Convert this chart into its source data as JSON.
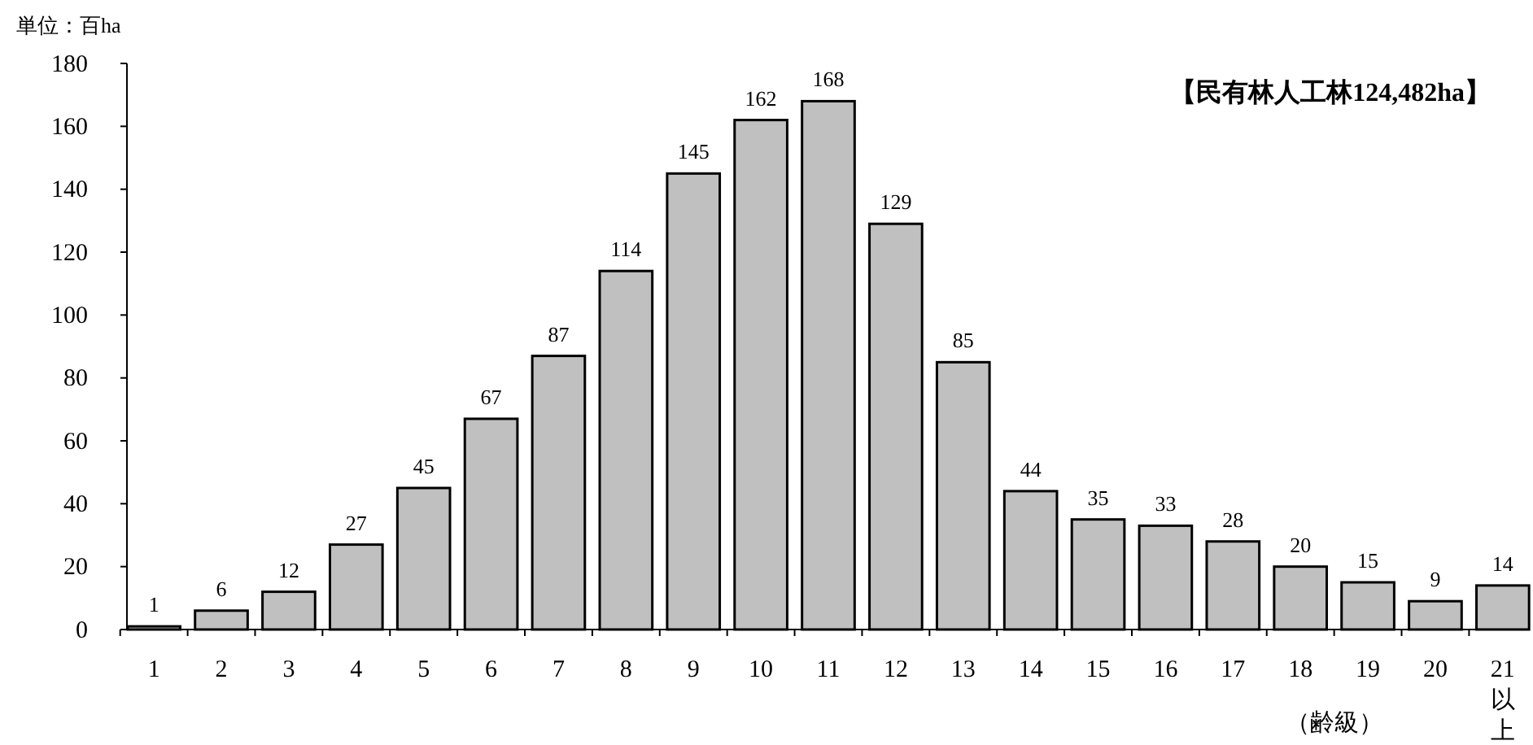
{
  "chart_data": {
    "type": "bar",
    "ylabel": "単位：百ha",
    "xlabel": "（齢級）",
    "annotations": [
      "【民有林人工林124,482ha】"
    ],
    "categories": [
      "1",
      "2",
      "3",
      "4",
      "5",
      "6",
      "7",
      "8",
      "9",
      "10",
      "11",
      "12",
      "13",
      "14",
      "15",
      "16",
      "17",
      "18",
      "19",
      "20",
      "21以上"
    ],
    "values": [
      1,
      6,
      12,
      27,
      45,
      67,
      87,
      114,
      145,
      162,
      168,
      129,
      85,
      44,
      35,
      33,
      28,
      20,
      15,
      9,
      14
    ],
    "color": "#c0c0c0",
    "ylim": [
      0,
      180
    ],
    "yticks": [
      0,
      20,
      40,
      60,
      80,
      100,
      120,
      140,
      160,
      180
    ],
    "grid": false,
    "data_labels": true
  }
}
